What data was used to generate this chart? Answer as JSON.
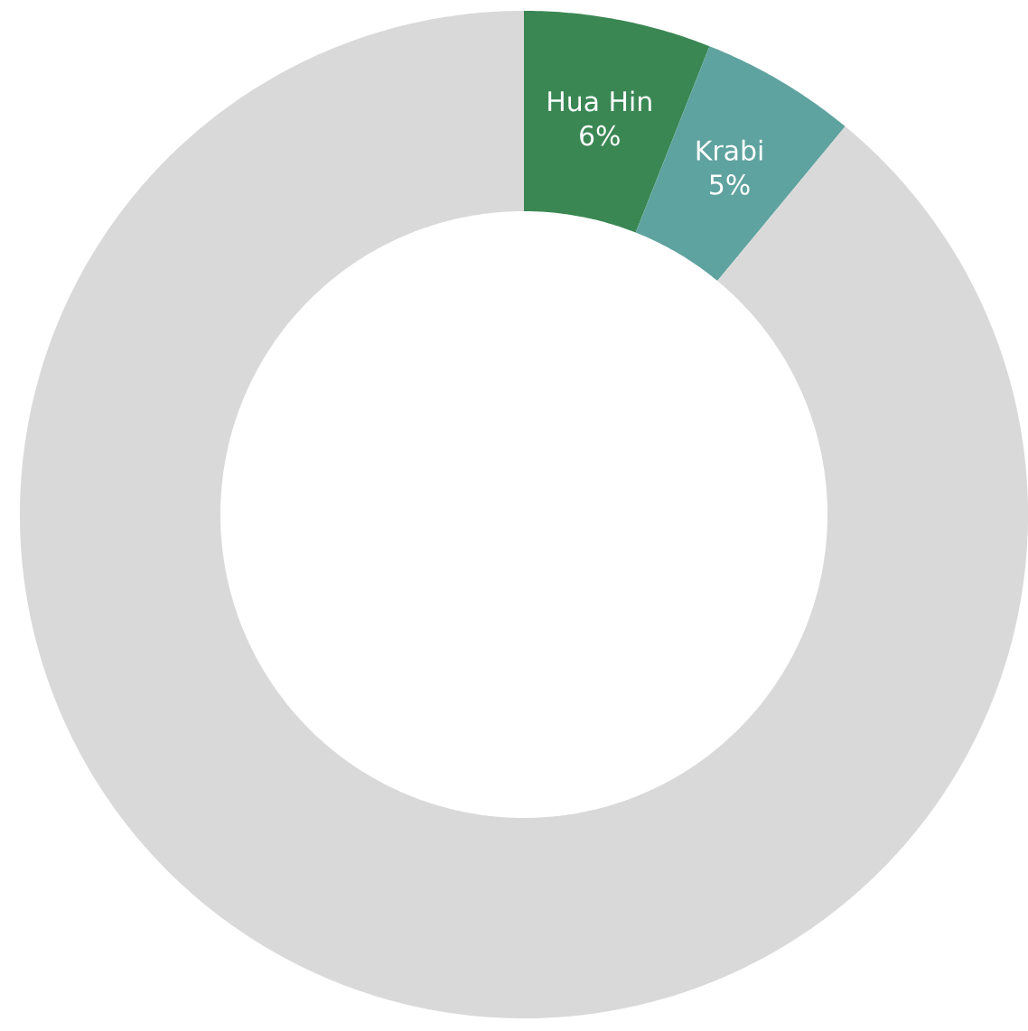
{
  "chart_data": {
    "type": "donut",
    "categories": [
      "Hua Hin",
      "Krabi",
      null
    ],
    "values": [
      6,
      5,
      89
    ],
    "value_labels": [
      "6%",
      "5%",
      null
    ],
    "colors": [
      "#3a8753",
      "#5fa3a0",
      "#d9d9d9"
    ]
  }
}
